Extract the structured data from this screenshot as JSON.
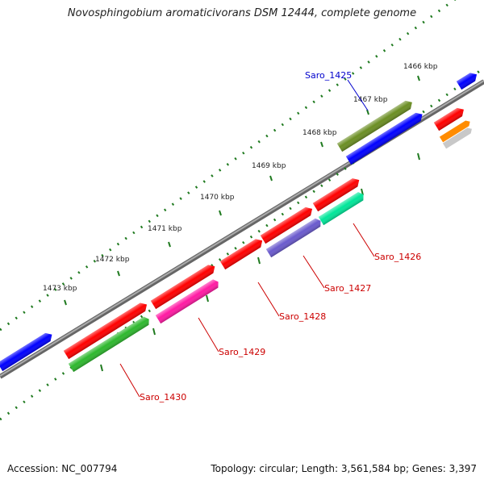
{
  "title": "Novosphingobium aromaticivorans DSM 12444, complete genome",
  "footer": {
    "accession": "Accession: NC_007794",
    "topology": "Topology: circular; Length: 3,561,584 bp; Genes: 3,397"
  },
  "scale_labels": [
    "1466 kbp",
    "1467 kbp",
    "1468 kbp",
    "1469 kbp",
    "1470 kbp",
    "1471 kbp",
    "1472 kbp",
    "1473 kbp"
  ],
  "gene_labels": [
    {
      "id": "Saro_1425",
      "color": "#0000cc"
    },
    {
      "id": "Saro_1426",
      "color": "#cc0000"
    },
    {
      "id": "Saro_1427",
      "color": "#cc0000"
    },
    {
      "id": "Saro_1428",
      "color": "#cc0000"
    },
    {
      "id": "Saro_1429",
      "color": "#cc0000"
    },
    {
      "id": "Saro_1430",
      "color": "#cc0000"
    }
  ],
  "colors": {
    "backbone": "#888888",
    "tick": "#1f7a1f",
    "forward": "#ff0000",
    "reverse": "#0000ff",
    "olive": "#6b8e23",
    "teal": "#00e699",
    "purple": "#6a5acd",
    "pink": "#ff1aa3",
    "green": "#2eb82e",
    "orange": "#ff8c00",
    "gray": "#c8c8c8"
  }
}
